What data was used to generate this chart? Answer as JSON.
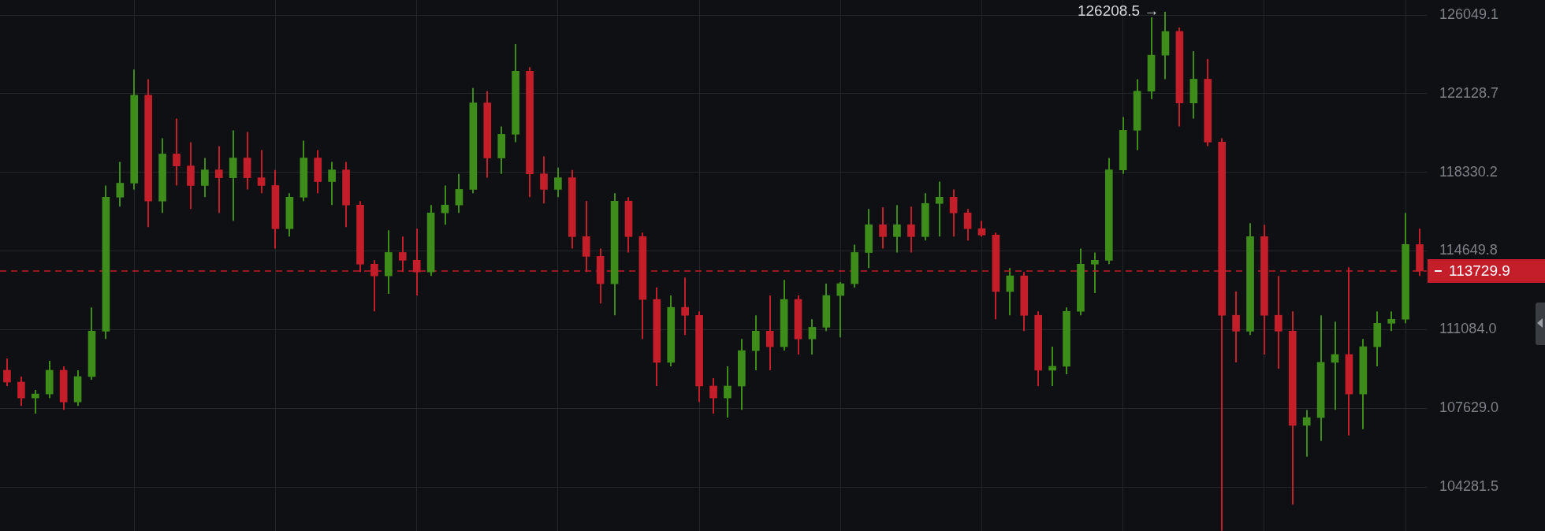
{
  "chart_data": {
    "type": "candlestick",
    "log": true,
    "grid": true,
    "tick_labels": "y",
    "ylim": [
      102450,
      126810
    ],
    "yticks": [
      {
        "value": 104281.5,
        "label": "104281.5"
      },
      {
        "value": 107629,
        "label": "107629.0"
      },
      {
        "value": 111084,
        "label": "111084.0"
      },
      {
        "value": 114649.8,
        "label": "114649.8"
      },
      {
        "value": 118330.2,
        "label": "118330.2"
      },
      {
        "value": 122128.7,
        "label": "122128.7"
      },
      {
        "value": 126049.1,
        "label": "126049.1"
      }
    ],
    "ref_lines": [
      {
        "axis": "y",
        "value": 113729.9,
        "label": "113729.9",
        "color": "#c41e2a",
        "line_style": "dashed"
      }
    ],
    "annotations": [
      "126208.5 →"
    ],
    "categories": [
      null,
      null,
      null,
      null,
      null,
      null,
      null,
      null,
      null,
      null,
      null,
      null,
      null,
      null,
      null,
      null,
      null,
      null,
      null,
      null,
      null,
      null,
      null,
      null,
      null,
      null,
      null,
      null,
      null,
      null,
      null,
      null,
      null,
      null,
      null,
      null,
      null,
      null,
      null,
      null,
      null,
      null,
      null,
      null,
      null,
      null,
      null,
      null,
      null,
      null,
      null,
      null,
      null,
      null,
      null,
      null,
      null,
      null,
      null,
      null,
      null,
      null,
      null,
      null,
      null,
      null,
      null,
      null,
      null,
      null,
      null,
      null,
      null,
      null,
      null,
      null,
      null,
      null,
      null,
      null,
      null,
      null,
      null,
      null,
      null,
      null,
      null,
      null,
      null,
      null,
      null,
      null,
      null,
      null,
      null,
      null,
      null,
      null,
      null,
      null,
      null
    ],
    "ohlc": [
      [
        109285,
        109804,
        108593,
        108766
      ],
      [
        108766,
        109008,
        107731,
        108074
      ],
      [
        108074,
        108420,
        107395,
        108247
      ],
      [
        108247,
        109700,
        108074,
        109285
      ],
      [
        109285,
        109458,
        107562,
        107901
      ],
      [
        107901,
        109285,
        107731,
        109008
      ],
      [
        109008,
        112080,
        108870,
        111015
      ],
      [
        111015,
        117704,
        110669,
        117152
      ],
      [
        117152,
        118823,
        116710,
        117815
      ],
      [
        117815,
        123317,
        117520,
        122053
      ],
      [
        122053,
        122841,
        115754,
        116968
      ],
      [
        116968,
        119963,
        116416,
        119203
      ],
      [
        119203,
        120913,
        117704,
        118633
      ],
      [
        118633,
        119773,
        116600,
        117704
      ],
      [
        117704,
        119013,
        117152,
        118443
      ],
      [
        118443,
        119583,
        116416,
        118072
      ],
      [
        118072,
        120343,
        116048,
        119013
      ],
      [
        119013,
        120267,
        117520,
        118072
      ],
      [
        118072,
        119393,
        117336,
        117704
      ],
      [
        117704,
        118443,
        114760,
        115680
      ],
      [
        115680,
        117336,
        115312,
        117152
      ],
      [
        117152,
        119849,
        116968,
        119013
      ],
      [
        119013,
        119393,
        117336,
        117888
      ],
      [
        117888,
        118823,
        116784,
        118443
      ],
      [
        118443,
        118823,
        115754,
        116784
      ],
      [
        116784,
        116968,
        113686,
        114043
      ],
      [
        114043,
        114222,
        111901,
        113508
      ],
      [
        113508,
        115606,
        112687,
        114579
      ],
      [
        114579,
        115312,
        113686,
        114222
      ],
      [
        114222,
        115680,
        112615,
        113686
      ],
      [
        113686,
        116784,
        113508,
        116416
      ],
      [
        116416,
        117704,
        115864,
        116784
      ],
      [
        116784,
        118256,
        116416,
        117520
      ],
      [
        117520,
        122406,
        117336,
        121673
      ],
      [
        121673,
        122248,
        118072,
        119013
      ],
      [
        119013,
        120533,
        118256,
        120153
      ],
      [
        120153,
        124584,
        119773,
        123237
      ],
      [
        123237,
        123435,
        117152,
        118256
      ],
      [
        118256,
        119089,
        116858,
        117520
      ],
      [
        117520,
        118557,
        117152,
        118072
      ],
      [
        118072,
        118443,
        114760,
        115312
      ],
      [
        115312,
        116968,
        113686,
        114400
      ],
      [
        114400,
        114760,
        112258,
        113151
      ],
      [
        113151,
        117336,
        111723,
        116968
      ],
      [
        116968,
        117152,
        114579,
        115312
      ],
      [
        115312,
        115496,
        110669,
        112437
      ],
      [
        112437,
        112972,
        108593,
        109631
      ],
      [
        109631,
        112615,
        109458,
        112080
      ],
      [
        112080,
        113436,
        110842,
        111723
      ],
      [
        111723,
        111901,
        107901,
        108593
      ],
      [
        108593,
        108939,
        107395,
        108074
      ],
      [
        108074,
        109458,
        107227,
        108593
      ],
      [
        108593,
        110669,
        107562,
        110150
      ],
      [
        110150,
        111723,
        109285,
        111015
      ],
      [
        111015,
        112615,
        109285,
        110323
      ],
      [
        110323,
        113329,
        110150,
        112437
      ],
      [
        112437,
        112615,
        109977,
        110669
      ],
      [
        110669,
        111544,
        109977,
        111187
      ],
      [
        111187,
        113151,
        111015,
        112615
      ],
      [
        112615,
        113222,
        110738,
        113151
      ],
      [
        113151,
        114944,
        112972,
        114579
      ],
      [
        114579,
        116600,
        113865,
        115864
      ],
      [
        115864,
        116674,
        114760,
        115312
      ],
      [
        115312,
        116784,
        114579,
        115864
      ],
      [
        115864,
        116710,
        114579,
        115312
      ],
      [
        115312,
        117336,
        115128,
        116858
      ],
      [
        116858,
        117888,
        115312,
        117152
      ],
      [
        117152,
        117520,
        115312,
        116416
      ],
      [
        116416,
        116600,
        115128,
        115680
      ],
      [
        115680,
        116048,
        115312,
        115386
      ],
      [
        115386,
        115496,
        111544,
        112794
      ],
      [
        112794,
        113865,
        111723,
        113508
      ],
      [
        113508,
        113686,
        111015,
        111723
      ],
      [
        111723,
        111901,
        108593,
        109285
      ],
      [
        109285,
        110323,
        108593,
        109458
      ],
      [
        109458,
        112080,
        109112,
        111901
      ],
      [
        111901,
        114760,
        111723,
        114043
      ],
      [
        114043,
        114579,
        112722,
        114222
      ],
      [
        114222,
        119013,
        114043,
        118443
      ],
      [
        118443,
        120989,
        118256,
        120343
      ],
      [
        120343,
        122841,
        119393,
        122248
      ],
      [
        122248,
        125930,
        121863,
        124029
      ],
      [
        124029,
        126208.5,
        122841,
        125217
      ],
      [
        125217,
        125415,
        120533,
        121673
      ],
      [
        121673,
        124227,
        120913,
        122841
      ],
      [
        122841,
        123831,
        119583,
        119773
      ],
      [
        119773,
        119963,
        102460,
        111723
      ],
      [
        111723,
        112794,
        109631,
        111015
      ],
      [
        111015,
        115938,
        110842,
        115312
      ],
      [
        115312,
        115864,
        109977,
        111723
      ],
      [
        111723,
        113508,
        109354,
        111015
      ],
      [
        111015,
        111901,
        103545,
        106892
      ],
      [
        106892,
        107562,
        105552,
        107227
      ],
      [
        107227,
        111723,
        106222,
        109631
      ],
      [
        109631,
        111437,
        107562,
        109977
      ],
      [
        109977,
        113900,
        106457,
        108247
      ],
      [
        108247,
        110669,
        106725,
        110323
      ],
      [
        110323,
        111901,
        109458,
        111366
      ],
      [
        111366,
        111901,
        111015,
        111544
      ],
      [
        111544,
        116416,
        111366,
        114944
      ],
      [
        114944,
        115680,
        113508,
        113729.9
      ]
    ],
    "colors": [
      "#c41e2a",
      "#c41e2a",
      "#3e8d1b",
      "#3e8d1b",
      "#c41e2a",
      "#3e8d1b",
      "#3e8d1b",
      "#3e8d1b",
      "#3e8d1b",
      "#3e8d1b",
      "#c41e2a",
      "#3e8d1b",
      "#c41e2a",
      "#c41e2a",
      "#3e8d1b",
      "#c41e2a",
      "#3e8d1b",
      "#c41e2a",
      "#c41e2a",
      "#c41e2a",
      "#3e8d1b",
      "#3e8d1b",
      "#c41e2a",
      "#3e8d1b",
      "#c41e2a",
      "#c41e2a",
      "#c41e2a",
      "#3e8d1b",
      "#c41e2a",
      "#c41e2a",
      "#3e8d1b",
      "#3e8d1b",
      "#3e8d1b",
      "#3e8d1b",
      "#c41e2a",
      "#3e8d1b",
      "#3e8d1b",
      "#c41e2a",
      "#c41e2a",
      "#3e8d1b",
      "#c41e2a",
      "#c41e2a",
      "#c41e2a",
      "#3e8d1b",
      "#c41e2a",
      "#c41e2a",
      "#c41e2a",
      "#3e8d1b",
      "#c41e2a",
      "#c41e2a",
      "#c41e2a",
      "#3e8d1b",
      "#3e8d1b",
      "#3e8d1b",
      "#c41e2a",
      "#3e8d1b",
      "#c41e2a",
      "#3e8d1b",
      "#3e8d1b",
      "#3e8d1b",
      "#3e8d1b",
      "#3e8d1b",
      "#c41e2a",
      "#3e8d1b",
      "#c41e2a",
      "#3e8d1b",
      "#3e8d1b",
      "#c41e2a",
      "#c41e2a",
      "#c41e2a",
      "#c41e2a",
      "#3e8d1b",
      "#c41e2a",
      "#c41e2a",
      "#3e8d1b",
      "#3e8d1b",
      "#3e8d1b",
      "#3e8d1b",
      "#3e8d1b",
      "#3e8d1b",
      "#3e8d1b",
      "#3e8d1b",
      "#3e8d1b",
      "#c41e2a",
      "#3e8d1b",
      "#c41e2a",
      "#c41e2a",
      "#c41e2a",
      "#3e8d1b",
      "#c41e2a",
      "#c41e2a",
      "#c41e2a",
      "#3e8d1b",
      "#3e8d1b",
      "#3e8d1b",
      "#c41e2a",
      "#3e8d1b",
      "#3e8d1b",
      "#3e8d1b",
      "#3e8d1b",
      "#c41e2a"
    ]
  }
}
